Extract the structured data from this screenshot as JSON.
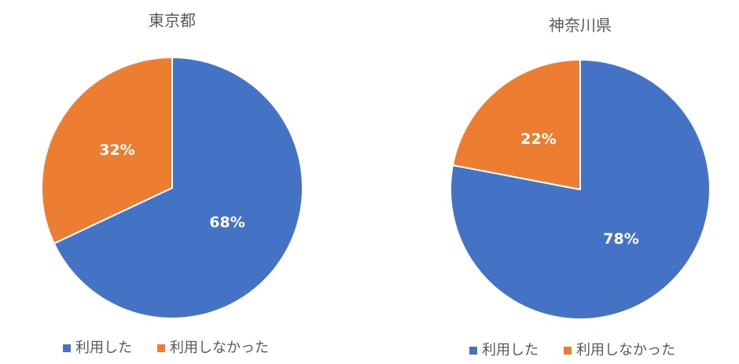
{
  "colors": {
    "used": "#4472C4",
    "not_used": "#ED7D31",
    "title": "#595959",
    "separator": "#FFFFFF"
  },
  "charts": [
    {
      "title": "東京都",
      "legend": [
        {
          "label": "利用した",
          "color": "#4472C4"
        },
        {
          "label": "利用しなかった",
          "color": "#ED7D31"
        }
      ],
      "slices": [
        {
          "label": "利用した",
          "value": 68,
          "display": "68%"
        },
        {
          "label": "利用しなかった",
          "value": 32,
          "display": "32%"
        }
      ]
    },
    {
      "title": "神奈川県",
      "legend": [
        {
          "label": "利用した",
          "color": "#4472C4"
        },
        {
          "label": "利用しなかった",
          "color": "#ED7D31"
        }
      ],
      "slices": [
        {
          "label": "利用した",
          "value": 78,
          "display": "78%"
        },
        {
          "label": "利用しなかった",
          "value": 22,
          "display": "22%"
        }
      ]
    }
  ],
  "chart_data": [
    {
      "type": "pie",
      "title": "東京都",
      "categories": [
        "利用した",
        "利用しなかった"
      ],
      "values": [
        68,
        32
      ],
      "colors": [
        "#4472C4",
        "#ED7D31"
      ],
      "data_labels": [
        "68%",
        "32%"
      ],
      "legend_position": "bottom",
      "start_angle": "12 o'clock, clockwise"
    },
    {
      "type": "pie",
      "title": "神奈川県",
      "categories": [
        "利用した",
        "利用しなかった"
      ],
      "values": [
        78,
        22
      ],
      "colors": [
        "#4472C4",
        "#ED7D31"
      ],
      "data_labels": [
        "78%",
        "22%"
      ],
      "legend_position": "bottom",
      "start_angle": "12 o'clock, clockwise"
    }
  ]
}
